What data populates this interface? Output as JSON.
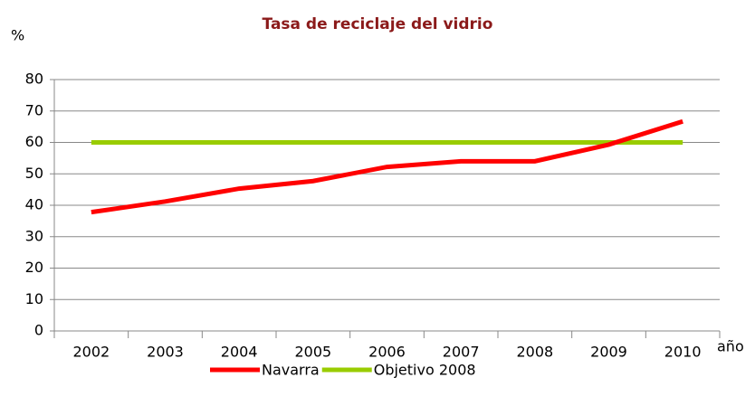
{
  "chart_data": {
    "type": "line",
    "title": "Tasa de reciclaje del vidrio",
    "y_label": "%",
    "x_label": "año",
    "categories": [
      "2002",
      "2003",
      "2004",
      "2005",
      "2006",
      "2007",
      "2008",
      "2009",
      "2010"
    ],
    "series": [
      {
        "name": "Navarra",
        "color": "#ff0000",
        "values": [
          37.8,
          41.2,
          45.3,
          47.7,
          52.2,
          54,
          54,
          59.3,
          66.7
        ]
      },
      {
        "name": "Objetivo 2008",
        "color": "#99cc00",
        "values": [
          60,
          60,
          60,
          60,
          60,
          60,
          60,
          60,
          60
        ]
      }
    ],
    "ylim": [
      0,
      80
    ],
    "yticks": [
      0,
      10,
      20,
      30,
      40,
      50,
      60,
      70,
      80
    ],
    "grid": true,
    "legend": "bottom"
  }
}
